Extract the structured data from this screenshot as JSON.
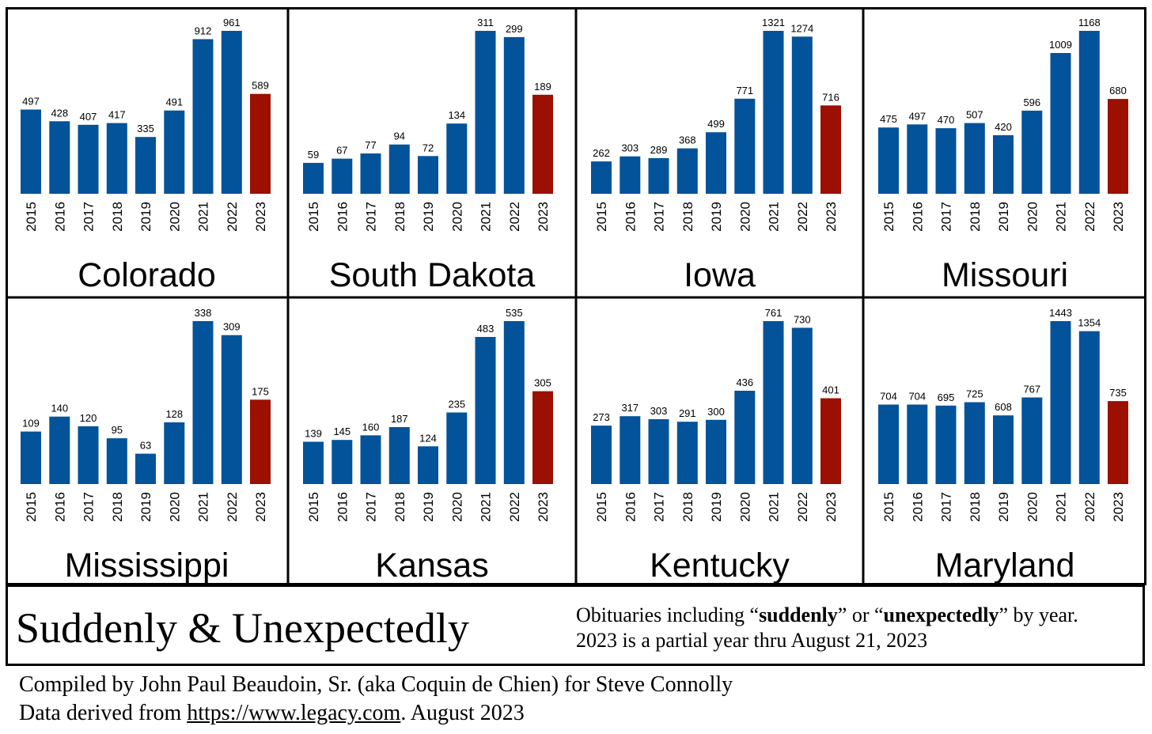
{
  "chart_data": [
    {
      "type": "bar",
      "title": "Colorado",
      "categories": [
        "2015",
        "2016",
        "2017",
        "2018",
        "2019",
        "2020",
        "2021",
        "2022",
        "2023"
      ],
      "values": [
        497,
        428,
        407,
        417,
        335,
        491,
        912,
        961,
        589
      ]
    },
    {
      "type": "bar",
      "title": "South Dakota",
      "categories": [
        "2015",
        "2016",
        "2017",
        "2018",
        "2019",
        "2020",
        "2021",
        "2022",
        "2023"
      ],
      "values": [
        59,
        67,
        77,
        94,
        72,
        134,
        311,
        299,
        189
      ]
    },
    {
      "type": "bar",
      "title": "Iowa",
      "categories": [
        "2015",
        "2016",
        "2017",
        "2018",
        "2019",
        "2020",
        "2021",
        "2022",
        "2023"
      ],
      "values": [
        262,
        303,
        289,
        368,
        499,
        771,
        1321,
        1274,
        716
      ]
    },
    {
      "type": "bar",
      "title": "Missouri",
      "categories": [
        "2015",
        "2016",
        "2017",
        "2018",
        "2019",
        "2020",
        "2021",
        "2022",
        "2023"
      ],
      "values": [
        475,
        497,
        470,
        507,
        420,
        596,
        1009,
        1168,
        680
      ]
    },
    {
      "type": "bar",
      "title": "Mississippi",
      "categories": [
        "2015",
        "2016",
        "2017",
        "2018",
        "2019",
        "2020",
        "2021",
        "2022",
        "2023"
      ],
      "values": [
        109,
        140,
        120,
        95,
        63,
        128,
        338,
        309,
        175
      ]
    },
    {
      "type": "bar",
      "title": "Kansas",
      "categories": [
        "2015",
        "2016",
        "2017",
        "2018",
        "2019",
        "2020",
        "2021",
        "2022",
        "2023"
      ],
      "values": [
        139,
        145,
        160,
        187,
        124,
        235,
        483,
        535,
        305
      ]
    },
    {
      "type": "bar",
      "title": "Kentucky",
      "categories": [
        "2015",
        "2016",
        "2017",
        "2018",
        "2019",
        "2020",
        "2021",
        "2022",
        "2023"
      ],
      "values": [
        273,
        317,
        303,
        291,
        300,
        436,
        761,
        730,
        401
      ]
    },
    {
      "type": "bar",
      "title": "Maryland",
      "categories": [
        "2015",
        "2016",
        "2017",
        "2018",
        "2019",
        "2020",
        "2021",
        "2022",
        "2023"
      ],
      "values": [
        704,
        704,
        695,
        725,
        608,
        767,
        1443,
        1354,
        735
      ]
    }
  ],
  "colors": {
    "full_year": "#02539a",
    "partial_year": "#9b1000",
    "border": "#000000"
  },
  "caption": {
    "title": "Suddenly & Unexpectedly",
    "desc_prefix": "Obituaries including “",
    "desc_word1": "suddenly",
    "desc_mid": "” or “",
    "desc_word2": "unexpectedly",
    "desc_suffix": "” by year.",
    "desc_line2": "2023 is a partial year thru August 21, 2023"
  },
  "credits": {
    "line1": "Compiled by John Paul Beaudoin, Sr. (aka Coquin de Chien) for Steve Connolly",
    "line2_prefix": "Data derived from ",
    "line2_link": "https://www.legacy.com",
    "line2_suffix": ". August 2023"
  }
}
